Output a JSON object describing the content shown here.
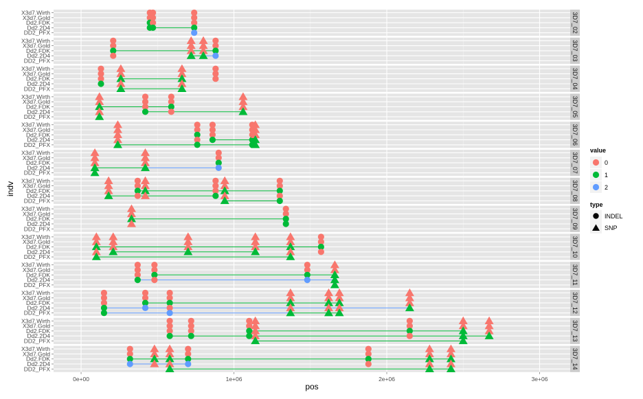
{
  "chart_data": {
    "type": "scatter",
    "xlabel": "pos",
    "ylabel": "indv",
    "xlim": [
      -180000,
      3200000
    ],
    "x_ticks": [
      0,
      1000000,
      2000000,
      3000000
    ],
    "x_tick_labels": [
      "0e+00",
      "1e+06",
      "2e+06",
      "3e+06"
    ],
    "individuals": [
      "X3d7.Wirth",
      "X3d7.Gold",
      "Dd2.FDK",
      "Dd2.2D4",
      "DD2_PFX"
    ],
    "grid": true,
    "legend_position": "right",
    "legend": {
      "value_title": "value",
      "values": [
        {
          "label": "0",
          "color": "#F8766D"
        },
        {
          "label": "1",
          "color": "#00BA38"
        },
        {
          "label": "2",
          "color": "#619CFF"
        }
      ],
      "type_title": "type",
      "types": [
        {
          "label": "INDEL",
          "shape": "circle"
        },
        {
          "label": "SNP",
          "shape": "triangle"
        }
      ]
    },
    "panels": [
      {
        "label": "3D7_02",
        "loci": [
          {
            "pos": 450000,
            "type": "INDEL",
            "values": [
              0,
              0,
              1,
              1,
              null
            ]
          },
          {
            "pos": 470000,
            "type": "INDEL",
            "values": [
              0,
              0,
              0,
              1,
              null
            ]
          },
          {
            "pos": 740000,
            "type": "INDEL",
            "values": [
              0,
              0,
              0,
              1,
              2
            ]
          }
        ]
      },
      {
        "label": "3D7_03",
        "loci": [
          {
            "pos": 210000,
            "type": "INDEL",
            "values": [
              0,
              0,
              1,
              0,
              null
            ]
          },
          {
            "pos": 720000,
            "type": "SNP",
            "values": [
              0,
              0,
              0,
              1,
              null
            ]
          },
          {
            "pos": 800000,
            "type": "SNP",
            "values": [
              0,
              0,
              0,
              1,
              null
            ]
          },
          {
            "pos": 880000,
            "type": "INDEL",
            "values": [
              0,
              0,
              1,
              2,
              null
            ]
          }
        ]
      },
      {
        "label": "3D7_04",
        "loci": [
          {
            "pos": 130000,
            "type": "INDEL",
            "values": [
              0,
              0,
              0,
              1,
              null
            ]
          },
          {
            "pos": 260000,
            "type": "SNP",
            "values": [
              0,
              0,
              1,
              0,
              1
            ]
          },
          {
            "pos": 660000,
            "type": "SNP",
            "values": [
              0,
              0,
              1,
              0,
              1
            ]
          },
          {
            "pos": 880000,
            "type": "INDEL",
            "values": [
              0,
              0,
              0,
              null,
              null
            ]
          }
        ]
      },
      {
        "label": "3D7_05",
        "loci": [
          {
            "pos": 120000,
            "type": "SNP",
            "values": [
              0,
              0,
              1,
              0,
              1
            ]
          },
          {
            "pos": 420000,
            "type": "INDEL",
            "values": [
              0,
              0,
              0,
              1,
              null
            ]
          },
          {
            "pos": 590000,
            "type": "INDEL",
            "values": [
              0,
              0,
              1,
              0,
              null
            ]
          },
          {
            "pos": 1060000,
            "type": "SNP",
            "values": [
              0,
              0,
              0,
              1,
              null
            ]
          }
        ]
      },
      {
        "label": "3D7_06",
        "loci": [
          {
            "pos": 240000,
            "type": "SNP",
            "values": [
              0,
              0,
              0,
              0,
              1
            ]
          },
          {
            "pos": 760000,
            "type": "INDEL",
            "values": [
              0,
              0,
              1,
              0,
              1
            ]
          },
          {
            "pos": 860000,
            "type": "INDEL",
            "values": [
              0,
              0,
              0,
              1,
              null
            ]
          },
          {
            "pos": 1120000,
            "type": "INDEL",
            "values": [
              0,
              0,
              0,
              1,
              1
            ]
          },
          {
            "pos": 1140000,
            "type": "SNP",
            "values": [
              0,
              0,
              0,
              1,
              1
            ]
          }
        ]
      },
      {
        "label": "3D7_07",
        "loci": [
          {
            "pos": 90000,
            "type": "SNP",
            "values": [
              0,
              0,
              0,
              1,
              1
            ]
          },
          {
            "pos": 420000,
            "type": "SNP",
            "values": [
              0,
              0,
              0,
              1,
              null
            ]
          },
          {
            "pos": 900000,
            "type": "INDEL",
            "values": [
              0,
              0,
              1,
              2,
              null
            ]
          }
        ]
      },
      {
        "label": "3D7_08",
        "loci": [
          {
            "pos": 180000,
            "type": "SNP",
            "values": [
              0,
              0,
              0,
              1,
              null
            ]
          },
          {
            "pos": 370000,
            "type": "INDEL",
            "values": [
              0,
              0,
              1,
              0,
              null
            ]
          },
          {
            "pos": 420000,
            "type": "SNP",
            "values": [
              0,
              0,
              1,
              0,
              null
            ]
          },
          {
            "pos": 880000,
            "type": "INDEL",
            "values": [
              0,
              0,
              0,
              1,
              null
            ]
          },
          {
            "pos": 940000,
            "type": "SNP",
            "values": [
              0,
              0,
              1,
              0,
              1
            ]
          },
          {
            "pos": 1300000,
            "type": "INDEL",
            "values": [
              0,
              0,
              1,
              0,
              1
            ]
          }
        ]
      },
      {
        "label": "3D7_09",
        "loci": [
          {
            "pos": 330000,
            "type": "SNP",
            "values": [
              0,
              0,
              1,
              0,
              null
            ]
          },
          {
            "pos": 1340000,
            "type": "INDEL",
            "values": [
              0,
              0,
              1,
              1,
              null
            ]
          }
        ]
      },
      {
        "label": "3D7_10",
        "loci": [
          {
            "pos": 100000,
            "type": "SNP",
            "values": [
              0,
              0,
              1,
              0,
              1
            ]
          },
          {
            "pos": 210000,
            "type": "SNP",
            "values": [
              0,
              0,
              0,
              1,
              null
            ]
          },
          {
            "pos": 700000,
            "type": "SNP",
            "values": [
              0,
              0,
              0,
              1,
              null
            ]
          },
          {
            "pos": 1140000,
            "type": "SNP",
            "values": [
              0,
              0,
              0,
              1,
              null
            ]
          },
          {
            "pos": 1370000,
            "type": "SNP",
            "values": [
              0,
              0,
              1,
              0,
              1
            ]
          },
          {
            "pos": 1570000,
            "type": "INDEL",
            "values": [
              0,
              0,
              1,
              0,
              null
            ]
          }
        ]
      },
      {
        "label": "3D7_11",
        "loci": [
          {
            "pos": 370000,
            "type": "INDEL",
            "values": [
              0,
              0,
              0,
              1,
              null
            ]
          },
          {
            "pos": 480000,
            "type": "INDEL",
            "values": [
              0,
              0,
              1,
              0,
              null
            ]
          },
          {
            "pos": 1480000,
            "type": "INDEL",
            "values": [
              0,
              0,
              1,
              2,
              null
            ]
          },
          {
            "pos": 1660000,
            "type": "SNP",
            "values": [
              0,
              0,
              1,
              1,
              1
            ]
          }
        ]
      },
      {
        "label": "3D7_12",
        "loci": [
          {
            "pos": 150000,
            "type": "INDEL",
            "values": [
              0,
              0,
              0,
              1,
              1
            ]
          },
          {
            "pos": 420000,
            "type": "INDEL",
            "values": [
              0,
              0,
              1,
              2,
              null
            ]
          },
          {
            "pos": 580000,
            "type": "INDEL",
            "values": [
              0,
              0,
              1,
              0,
              2
            ]
          },
          {
            "pos": 1370000,
            "type": "SNP",
            "values": [
              0,
              0,
              1,
              0,
              1
            ]
          },
          {
            "pos": 1620000,
            "type": "SNP",
            "values": [
              0,
              0,
              1,
              0,
              1
            ]
          },
          {
            "pos": 1690000,
            "type": "SNP",
            "values": [
              0,
              0,
              1,
              0,
              1
            ]
          },
          {
            "pos": 2150000,
            "type": "SNP",
            "values": [
              0,
              0,
              0,
              1,
              null
            ]
          }
        ]
      },
      {
        "label": "3D7_13",
        "loci": [
          {
            "pos": 580000,
            "type": "INDEL",
            "values": [
              0,
              0,
              0,
              1,
              null
            ]
          },
          {
            "pos": 720000,
            "type": "INDEL",
            "values": [
              0,
              0,
              0,
              1,
              null
            ]
          },
          {
            "pos": 1100000,
            "type": "INDEL",
            "values": [
              0,
              0,
              1,
              1,
              null
            ]
          },
          {
            "pos": 1140000,
            "type": "SNP",
            "values": [
              0,
              0,
              0,
              0,
              1
            ]
          },
          {
            "pos": 2150000,
            "type": "INDEL",
            "values": [
              0,
              0,
              1,
              0,
              null
            ]
          },
          {
            "pos": 2500000,
            "type": "SNP",
            "values": [
              0,
              0,
              1,
              1,
              1
            ]
          },
          {
            "pos": 2670000,
            "type": "SNP",
            "values": [
              0,
              0,
              0,
              1,
              null
            ]
          }
        ]
      },
      {
        "label": "3D7_14",
        "loci": [
          {
            "pos": 320000,
            "type": "INDEL",
            "values": [
              0,
              0,
              1,
              2,
              null
            ]
          },
          {
            "pos": 480000,
            "type": "SNP",
            "values": [
              0,
              0,
              1,
              0,
              null
            ]
          },
          {
            "pos": 580000,
            "type": "SNP",
            "values": [
              0,
              0,
              1,
              0,
              1
            ]
          },
          {
            "pos": 700000,
            "type": "INDEL",
            "values": [
              0,
              0,
              1,
              2,
              null
            ]
          },
          {
            "pos": 1880000,
            "type": "INDEL",
            "values": [
              0,
              0,
              1,
              0,
              null
            ]
          },
          {
            "pos": 2280000,
            "type": "SNP",
            "values": [
              0,
              0,
              1,
              0,
              1
            ]
          },
          {
            "pos": 2420000,
            "type": "SNP",
            "values": [
              0,
              0,
              1,
              0,
              1
            ]
          }
        ]
      }
    ]
  }
}
